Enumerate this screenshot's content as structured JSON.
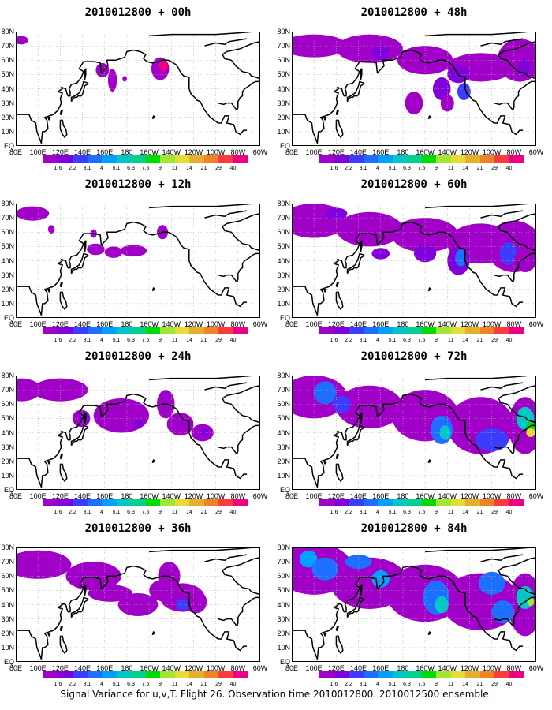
{
  "panels": [
    {
      "title": "2010012800 + 00h",
      "shading_level": 0
    },
    {
      "title": "2010012800 + 12h",
      "shading_level": 1
    },
    {
      "title": "2010012800 + 24h",
      "shading_level": 2
    },
    {
      "title": "2010012800 + 36h",
      "shading_level": 3
    },
    {
      "title": "2010012800 + 48h",
      "shading_level": 4
    },
    {
      "title": "2010012800 + 60h",
      "shading_level": 5
    },
    {
      "title": "2010012800 + 72h",
      "shading_level": 6
    },
    {
      "title": "2010012800 + 84h",
      "shading_level": 7
    }
  ],
  "lat_labels": [
    "80N",
    "70N",
    "60N",
    "50N",
    "40N",
    "30N",
    "20N",
    "10N",
    "EQ"
  ],
  "lon_labels": [
    "80E",
    "100E",
    "120E",
    "140E",
    "160E",
    "180",
    "160W",
    "140W",
    "120W",
    "100W",
    "80W",
    "60W"
  ],
  "colorbar": {
    "labels": [
      "1.6",
      "2.2",
      "3.1",
      "4",
      "5.1",
      "6.3",
      "7.5",
      "9",
      "11",
      "14",
      "21",
      "29",
      "40"
    ],
    "colors": [
      "#a000c8",
      "#8200dc",
      "#3c3cff",
      "#1e6eff",
      "#00a0ff",
      "#00c8c8",
      "#00d28c",
      "#00dc00",
      "#a0e632",
      "#e6dc32",
      "#e6af2d",
      "#f08228",
      "#fa3c3c",
      "#f00082"
    ]
  },
  "map_colors": {
    "land_outline": "#000000",
    "grid": "#b0b0b0"
  },
  "caption": "Signal Variance for u,v,T. Flight 26. Observation time 2010012800. 2010012500 ensemble."
}
